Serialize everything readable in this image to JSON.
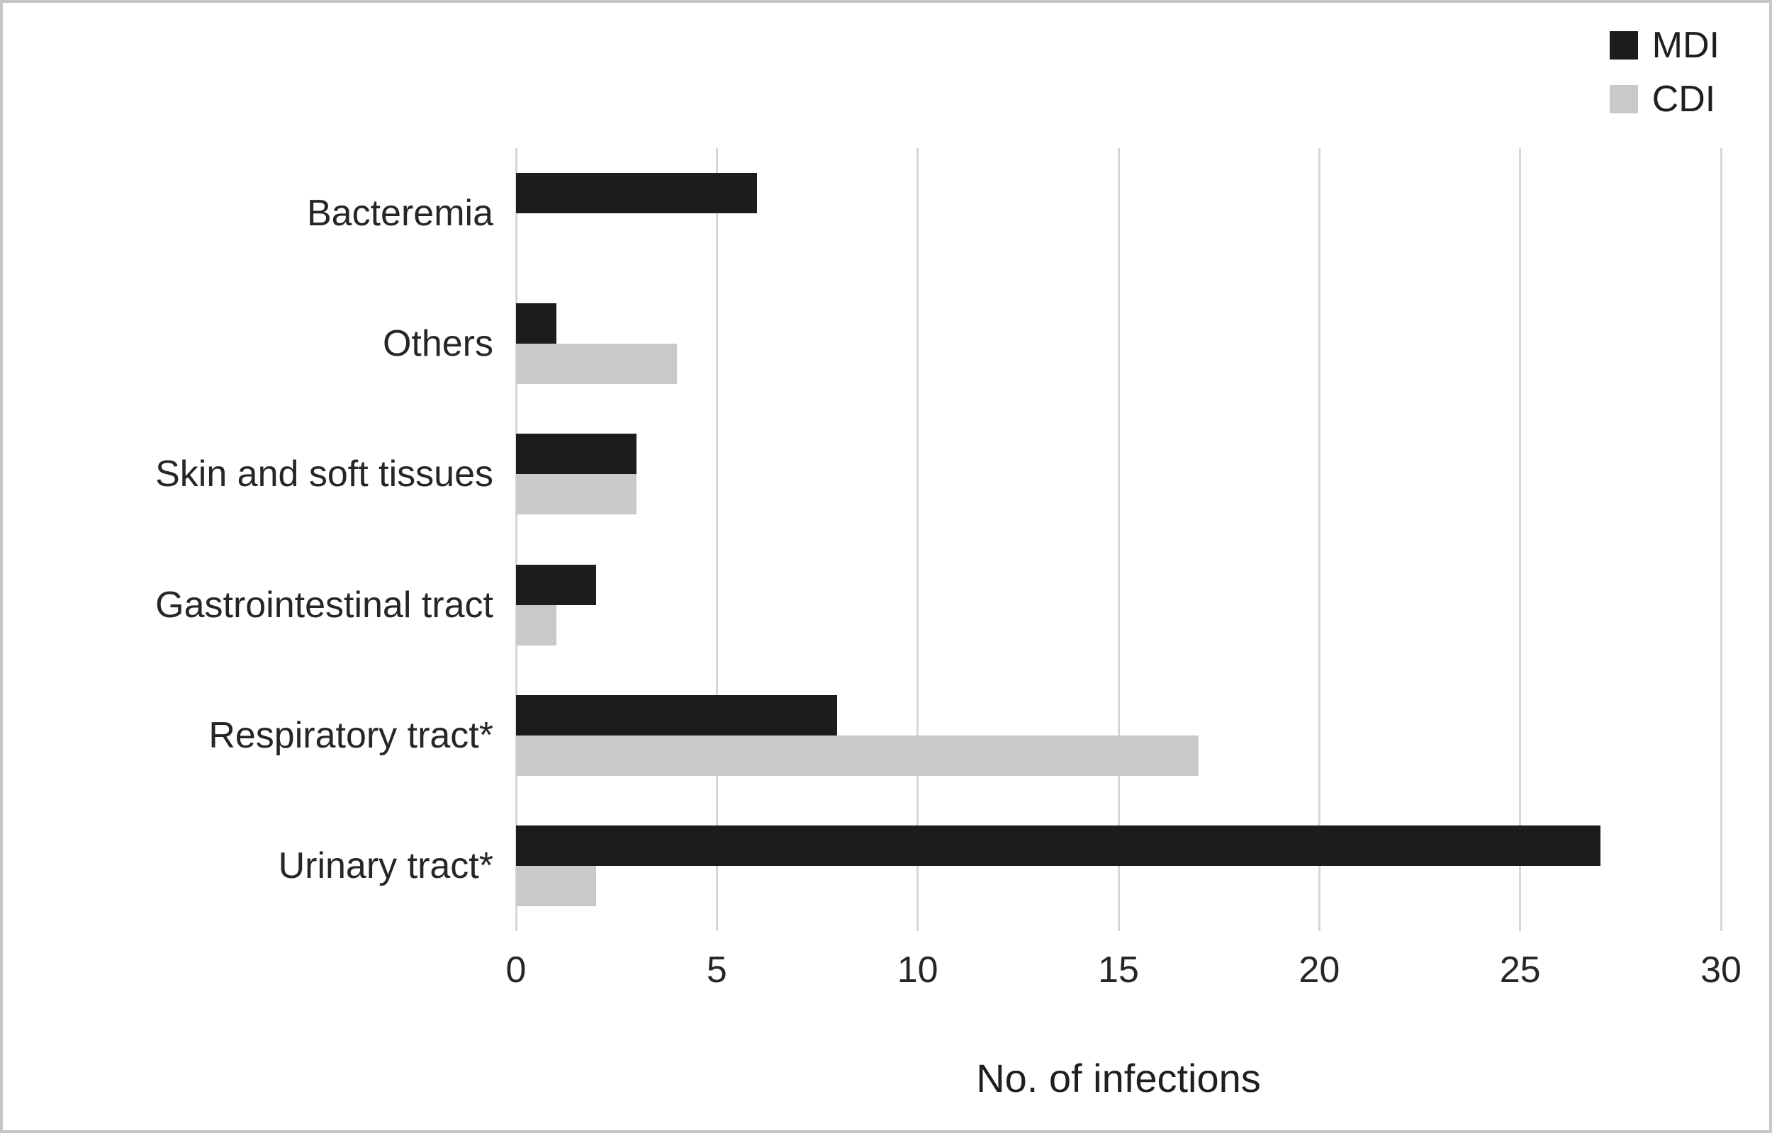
{
  "chart_data": {
    "type": "bar",
    "orientation": "horizontal",
    "title": "",
    "xlabel": "No. of infections",
    "xlim": [
      0,
      30
    ],
    "xticks": [
      0,
      5,
      10,
      15,
      20,
      25,
      30
    ],
    "grid": true,
    "legend_position": "top-right",
    "categories": [
      "Bacteremia",
      "Others",
      "Skin and soft tissues",
      "Gastrointestinal tract",
      "Respiratory tract*",
      "Urinary tract*"
    ],
    "series": [
      {
        "name": "MDI",
        "color": "#1c1c1c",
        "values": [
          6,
          1,
          3,
          2,
          8,
          27
        ]
      },
      {
        "name": "CDI",
        "color": "#c9c9c9",
        "values": [
          0,
          4,
          3,
          1,
          17,
          2
        ]
      }
    ]
  },
  "colors": {
    "background": "#ffffff",
    "gridline": "#d6d6d6",
    "text": "#262626",
    "figure_border": "#c6c6c6"
  }
}
